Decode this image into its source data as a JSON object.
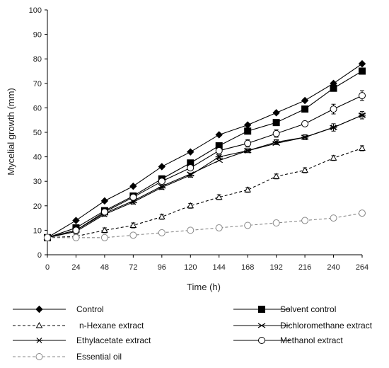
{
  "chart_data": {
    "type": "line",
    "xlabel": "Time (h)",
    "ylabel": "Mycelial growth (mm)",
    "xlim": [
      0,
      264
    ],
    "ylim": [
      0,
      100
    ],
    "xticks": [
      0,
      24,
      48,
      72,
      96,
      120,
      144,
      168,
      192,
      216,
      240,
      264
    ],
    "yticks": [
      0,
      10,
      20,
      30,
      40,
      50,
      60,
      70,
      80,
      90,
      100
    ],
    "grid": false,
    "legend_position": "bottom",
    "x": [
      0,
      24,
      48,
      72,
      96,
      120,
      144,
      168,
      192,
      216,
      240,
      264
    ],
    "series": [
      {
        "name": "Control",
        "marker": "diamond-filled",
        "line": "solid",
        "values": [
          7,
          14,
          22,
          28,
          36,
          42,
          49,
          53,
          58,
          63,
          70,
          78
        ]
      },
      {
        "name": "Solvent control",
        "marker": "square-filled",
        "line": "solid",
        "values": [
          7,
          11,
          18,
          24,
          31,
          37.5,
          44.5,
          50.5,
          54,
          59.5,
          68,
          75
        ]
      },
      {
        "name": "n-Hexane extract",
        "marker": "triangle-open",
        "line": "dashed",
        "values": [
          7,
          7.5,
          10,
          12,
          15.5,
          20,
          23.5,
          26.5,
          32,
          34.5,
          39.5,
          43.5
        ]
      },
      {
        "name": "Dichloromethane extract",
        "marker": "x-cross",
        "line": "solid",
        "values": [
          7,
          10,
          17,
          22,
          28,
          33,
          38.5,
          42.5,
          45.5,
          48,
          52,
          57
        ]
      },
      {
        "name": "Ethylacetate extract",
        "marker": "asterisk",
        "line": "solid",
        "values": [
          7,
          9.5,
          16.5,
          21.5,
          27.5,
          32.5,
          40,
          42.5,
          46,
          48,
          52,
          57
        ]
      },
      {
        "name": "Methanol extract",
        "marker": "circle-open",
        "line": "solid",
        "values": [
          7,
          10,
          17.5,
          23.5,
          30,
          35.5,
          42.5,
          45.5,
          49.5,
          53.5,
          59.5,
          65
        ]
      },
      {
        "name": "Essential oil",
        "marker": "circle-open",
        "line": "dashed",
        "color": "#888888",
        "values": [
          7,
          7,
          7,
          8,
          9,
          10,
          11,
          12,
          13,
          14,
          15,
          17
        ]
      }
    ],
    "error_bars": [
      {
        "series": "n-Hexane extract",
        "values": [
          0,
          0.8,
          1,
          1,
          1,
          1,
          1,
          1,
          1,
          1,
          1,
          1
        ]
      },
      {
        "series": "Ethylacetate extract",
        "values": [
          0,
          0.5,
          0.8,
          0.8,
          0.8,
          0.8,
          0.8,
          0.8,
          1,
          1,
          1.5,
          1.5
        ]
      },
      {
        "series": "Methanol extract",
        "values": [
          0,
          0.8,
          0.8,
          1,
          1,
          1,
          1.2,
          1.5,
          1.5,
          1,
          2,
          2
        ]
      },
      {
        "series": "Solvent control",
        "values": [
          0,
          0.5,
          0.5,
          0.5,
          0.5,
          0.5,
          0.5,
          0.5,
          0.5,
          0.5,
          0.5,
          0.5
        ]
      }
    ]
  },
  "legend": {
    "items": [
      {
        "label": "Control",
        "series": "Control"
      },
      {
        "label": "Solvent control",
        "series": "Solvent control"
      },
      {
        "label": "n-Hexane extract",
        "series": "n-Hexane extract"
      },
      {
        "label": "Dichloromethane extract",
        "series": "Dichloromethane extract"
      },
      {
        "label": "Ethylacetate extract",
        "series": "Ethylacetate extract"
      },
      {
        "label": "Methanol extract",
        "series": "Methanol extract"
      },
      {
        "label": "Essential oil",
        "series": "Essential oil"
      }
    ]
  }
}
